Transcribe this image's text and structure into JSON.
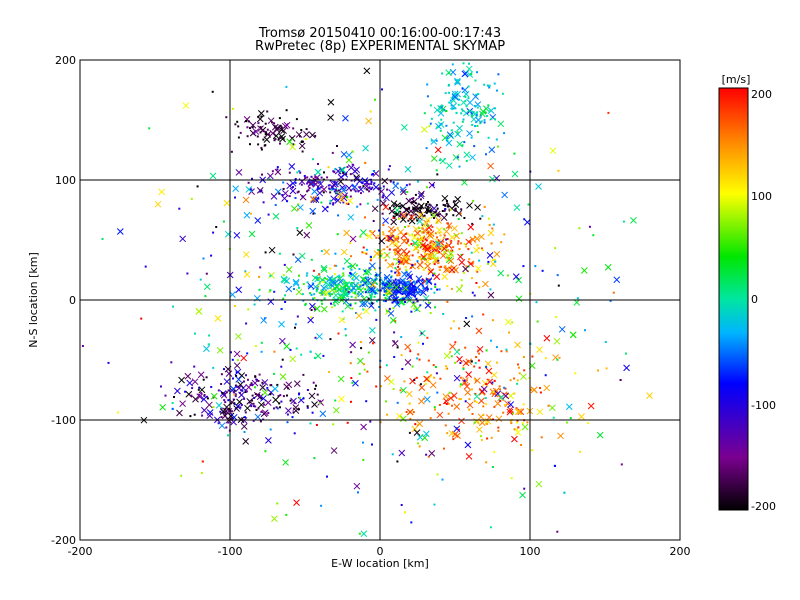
{
  "chart_data": {
    "type": "scatter",
    "title": "Tromsø 20150410 00:16:00-00:17:43",
    "subtitle": "RwPretec (8p) EXPERIMENTAL SKYMAP",
    "xlabel": "E-W location [km]",
    "ylabel": "N-S location [km]",
    "xlim": [
      -200,
      200
    ],
    "ylim": [
      -200,
      200
    ],
    "xticks": [
      "-200",
      "-100",
      "0",
      "100",
      "200"
    ],
    "yticks": [
      "-200",
      "-100",
      "0",
      "100",
      "200"
    ],
    "grid": true,
    "colorbar": {
      "label": "[m/s]",
      "range": [
        -200,
        200
      ],
      "ticks": [
        "200",
        "100",
        "0",
        "-100",
        "-200"
      ],
      "colormap": "black-purple-blue-cyan-green-yellow-red"
    },
    "markers": [
      "x",
      "dot"
    ],
    "clusters": [
      {
        "cx": 55,
        "cy": 160,
        "sx": 18,
        "sy": 28,
        "n": 160,
        "vmean": -20,
        "vsd": 35
      },
      {
        "cx": -70,
        "cy": 140,
        "sx": 22,
        "sy": 12,
        "n": 90,
        "vmean": -180,
        "vsd": 25
      },
      {
        "cx": -30,
        "cy": 95,
        "sx": 35,
        "sy": 12,
        "n": 200,
        "vmean": -120,
        "vsd": 60
      },
      {
        "cx": 30,
        "cy": 75,
        "sx": 22,
        "sy": 8,
        "n": 120,
        "vmean": -190,
        "vsd": 20
      },
      {
        "cx": 30,
        "cy": 45,
        "sx": 28,
        "sy": 18,
        "n": 320,
        "vmean": 150,
        "vsd": 60
      },
      {
        "cx": -20,
        "cy": 10,
        "sx": 28,
        "sy": 12,
        "n": 260,
        "vmean": 10,
        "vsd": 60
      },
      {
        "cx": 15,
        "cy": 10,
        "sx": 15,
        "sy": 8,
        "n": 180,
        "vmean": -70,
        "vsd": 30
      },
      {
        "cx": -90,
        "cy": -80,
        "sx": 35,
        "sy": 18,
        "n": 220,
        "vmean": -150,
        "vsd": 60
      },
      {
        "cx": 70,
        "cy": -80,
        "sx": 45,
        "sy": 35,
        "n": 220,
        "vmean": 150,
        "vsd": 50
      },
      {
        "cx": 0,
        "cy": 0,
        "sx": 115,
        "sy": 115,
        "n": 600,
        "vmean": 0,
        "vsd": 140
      }
    ]
  }
}
